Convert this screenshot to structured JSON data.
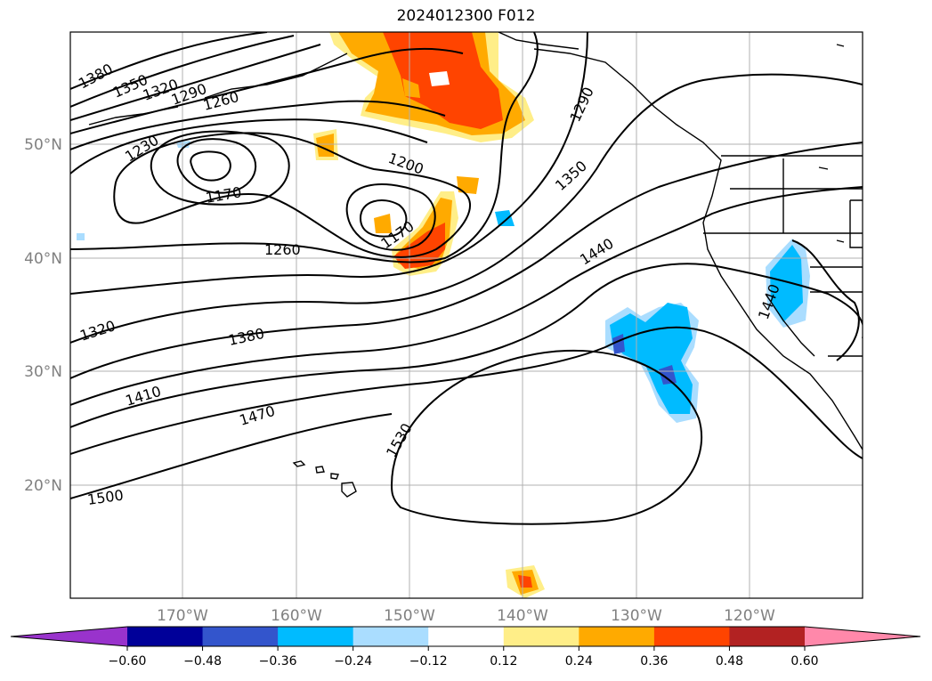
{
  "title": "2024012300 F012",
  "lat_labels": [
    "50°N",
    "40°N",
    "30°N",
    "20°N"
  ],
  "lon_labels": [
    "170°W",
    "160°W",
    "150°W",
    "140°W",
    "130°W",
    "120°W"
  ],
  "contour_labels": [
    "1380",
    "1350",
    "1320",
    "1290",
    "1260",
    "1230",
    "1170",
    "1200",
    "1170",
    "1260",
    "1290",
    "1350",
    "1440",
    "1320",
    "1380",
    "1410",
    "1470",
    "1530",
    "1500",
    "1440"
  ],
  "colorbar": {
    "colors": [
      "#9933cc",
      "#000099",
      "#3355cc",
      "#00bbff",
      "#aaddff",
      "#ffffff",
      "#ffee88",
      "#ffaa00",
      "#ff4400",
      "#b22222",
      "#ff88aa"
    ],
    "ticks": [
      "−0.60",
      "−0.48",
      "−0.36",
      "−0.24",
      "−0.12",
      "0.12",
      "0.24",
      "0.36",
      "0.48",
      "0.60"
    ]
  }
}
